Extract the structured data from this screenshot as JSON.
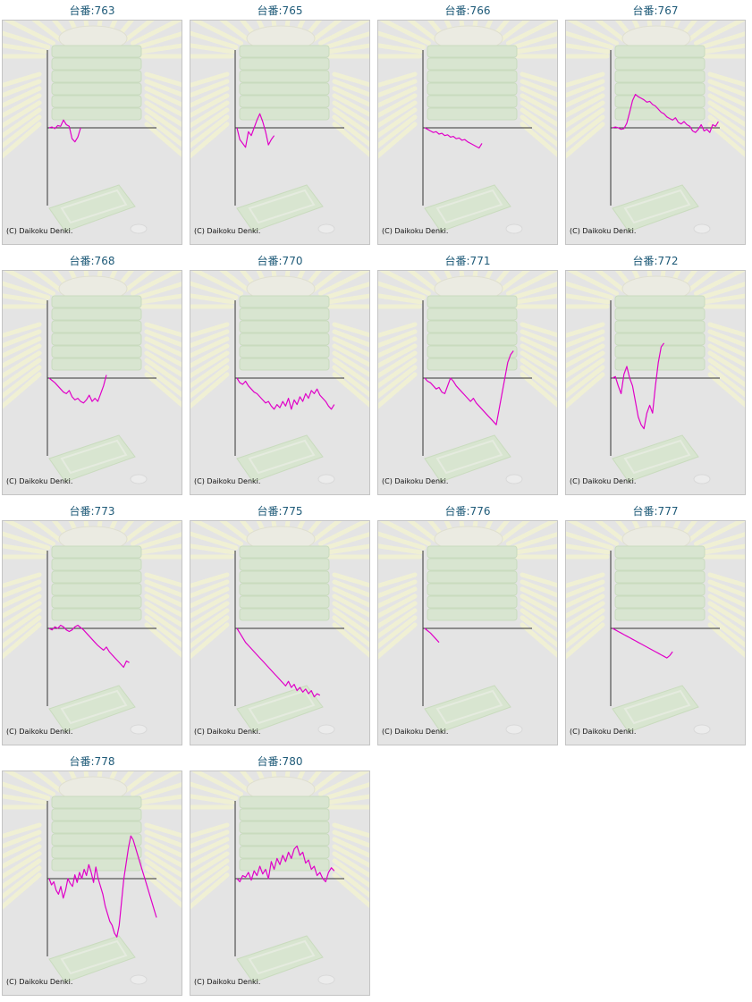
{
  "copyright": "(C) Daikoku Denki.",
  "series_color": "#e000c8",
  "chart_data": [
    {
      "type": "line",
      "title": "台番:763",
      "values": [
        0,
        1,
        -1,
        3,
        2,
        10,
        4,
        2,
        -14,
        -18,
        -12,
        0
      ]
    },
    {
      "type": "line",
      "title": "台番:765",
      "values": [
        0,
        -15,
        -20,
        -25,
        -5,
        -10,
        0,
        10,
        18,
        8,
        -5,
        -22,
        -15,
        -10
      ]
    },
    {
      "type": "line",
      "title": "台番:766",
      "values": [
        0,
        -2,
        -4,
        -6,
        -5,
        -8,
        -7,
        -10,
        -9,
        -12,
        -11,
        -14,
        -13,
        -16,
        -15,
        -18,
        -20,
        -22,
        -24,
        -26,
        -20
      ]
    },
    {
      "type": "line",
      "title": "台番:767",
      "values": [
        0,
        1,
        0,
        -2,
        -1,
        6,
        20,
        35,
        43,
        40,
        38,
        36,
        33,
        34,
        30,
        28,
        24,
        20,
        18,
        14,
        12,
        10,
        13,
        7,
        5,
        8,
        4,
        2,
        -4,
        -6,
        -2,
        4,
        -4,
        -2,
        -6,
        4,
        2,
        8
      ]
    },
    {
      "type": "line",
      "title": "台番:768",
      "values": [
        0,
        -3,
        -6,
        -10,
        -14,
        -18,
        -20,
        -16,
        -24,
        -28,
        -26,
        -30,
        -32,
        -28,
        -22,
        -30,
        -26,
        -30,
        -20,
        -10,
        4
      ]
    },
    {
      "type": "line",
      "title": "台番:770",
      "values": [
        0,
        -6,
        -8,
        -4,
        -10,
        -14,
        -18,
        -20,
        -24,
        -28,
        -32,
        -30,
        -36,
        -40,
        -34,
        -38,
        -30,
        -36,
        -26,
        -40,
        -28,
        -34,
        -24,
        -30,
        -20,
        -26,
        -16,
        -20,
        -14,
        -22,
        -26,
        -30,
        -36,
        -40,
        -34
      ]
    },
    {
      "type": "line",
      "title": "台番:771",
      "values": [
        0,
        -4,
        -6,
        -10,
        -14,
        -12,
        -18,
        -20,
        -10,
        0,
        -4,
        -10,
        -14,
        -18,
        -22,
        -26,
        -30,
        -26,
        -32,
        -36,
        -40,
        -44,
        -48,
        -52,
        -56,
        -60,
        -40,
        -20,
        0,
        20,
        30,
        35
      ]
    },
    {
      "type": "line",
      "title": "台番:772",
      "values": [
        0,
        2,
        -10,
        -20,
        5,
        15,
        0,
        -10,
        -30,
        -50,
        -60,
        -65,
        -45,
        -35,
        -45,
        -10,
        20,
        40,
        45
      ]
    },
    {
      "type": "line",
      "title": "台番:773",
      "values": [
        0,
        -2,
        2,
        0,
        4,
        2,
        -2,
        -4,
        -2,
        2,
        4,
        1,
        -2,
        -6,
        -10,
        -14,
        -18,
        -22,
        -25,
        -28,
        -24,
        -30,
        -34,
        -38,
        -42,
        -46,
        -50,
        -42,
        -44
      ]
    },
    {
      "type": "line",
      "title": "台番:775",
      "values": [
        0,
        -6,
        -12,
        -18,
        -22,
        -26,
        -30,
        -34,
        -38,
        -42,
        -46,
        -50,
        -54,
        -58,
        -62,
        -66,
        -70,
        -74,
        -68,
        -76,
        -72,
        -80,
        -76,
        -82,
        -78,
        -84,
        -80,
        -88,
        -84,
        -86
      ]
    },
    {
      "type": "line",
      "title": "台番:776",
      "values": [
        0,
        -3,
        -6,
        -10,
        -14,
        -18
      ]
    },
    {
      "type": "line",
      "title": "台番:777",
      "values": [
        0,
        -2,
        -4,
        -6,
        -8,
        -10,
        -12,
        -14,
        -16,
        -18,
        -20,
        -22,
        -24,
        -26,
        -28,
        -30,
        -32,
        -34,
        -36,
        -38,
        -35,
        -30
      ]
    },
    {
      "type": "line",
      "title": "台番:778",
      "values": [
        0,
        -8,
        -4,
        -15,
        -20,
        -10,
        -25,
        -15,
        0,
        -6,
        -10,
        5,
        -5,
        8,
        0,
        12,
        4,
        18,
        8,
        -5,
        15,
        0,
        -10,
        -20,
        -35,
        -45,
        -55,
        -60,
        -70,
        -75,
        -60,
        -30,
        0,
        20,
        40,
        55,
        50,
        40,
        30,
        20,
        10,
        0,
        -10,
        -20,
        -30,
        -40,
        -50
      ]
    },
    {
      "type": "line",
      "title": "台番:780",
      "values": [
        0,
        -4,
        4,
        2,
        8,
        -2,
        10,
        4,
        16,
        6,
        12,
        0,
        22,
        12,
        26,
        18,
        30,
        22,
        34,
        26,
        38,
        42,
        30,
        34,
        20,
        24,
        12,
        16,
        4,
        8,
        0,
        -4,
        8,
        14,
        10
      ]
    }
  ]
}
